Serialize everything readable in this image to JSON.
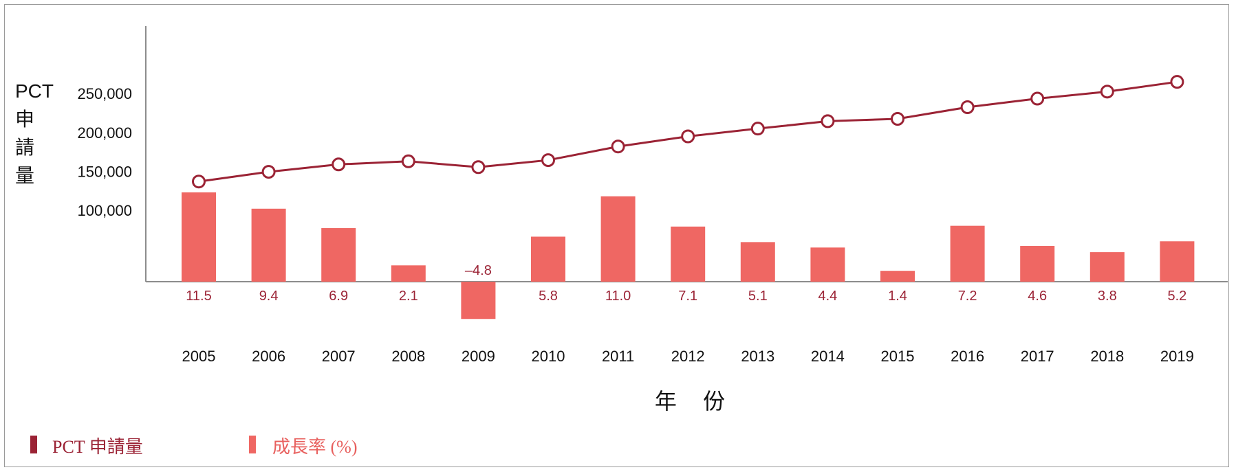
{
  "colors": {
    "line": "#9b2335",
    "bar": "#ef6763",
    "rate_label": "#9b2335",
    "axis": "#8c8c8c"
  },
  "chart_data": {
    "type": "bar+line",
    "categories": [
      "2005",
      "2006",
      "2007",
      "2008",
      "2009",
      "2010",
      "2011",
      "2012",
      "2013",
      "2014",
      "2015",
      "2016",
      "2017",
      "2018",
      "2019"
    ],
    "series": [
      {
        "name": "PCT 申請量",
        "type": "line",
        "values": [
          137000,
          149500,
          159000,
          163000,
          155500,
          164500,
          182000,
          195000,
          205000,
          214500,
          217500,
          232500,
          243500,
          252500,
          265000
        ]
      },
      {
        "name": "成長率 (%)",
        "type": "bar",
        "values": [
          11.5,
          9.4,
          6.9,
          2.1,
          -4.8,
          5.8,
          11.0,
          7.1,
          5.1,
          4.4,
          1.4,
          7.2,
          4.6,
          3.8,
          5.2
        ],
        "labels": [
          "11.5",
          "9.4",
          "6.9",
          "2.1",
          "–4.8",
          "5.8",
          "11.0",
          "7.1",
          "5.1",
          "4.4",
          "1.4",
          "7.2",
          "4.6",
          "3.8",
          "5.2"
        ]
      }
    ],
    "yticks": [
      "100,000",
      "150,000",
      "200,000",
      "250,000"
    ],
    "ytick_values": [
      100000,
      150000,
      200000,
      250000
    ],
    "ylabel": "PCT 申請量",
    "xlabel": "年 份",
    "legend": {
      "position": "bottom-left",
      "items": [
        "PCT 申請量",
        "成長率 (%)"
      ]
    },
    "grid": false
  }
}
